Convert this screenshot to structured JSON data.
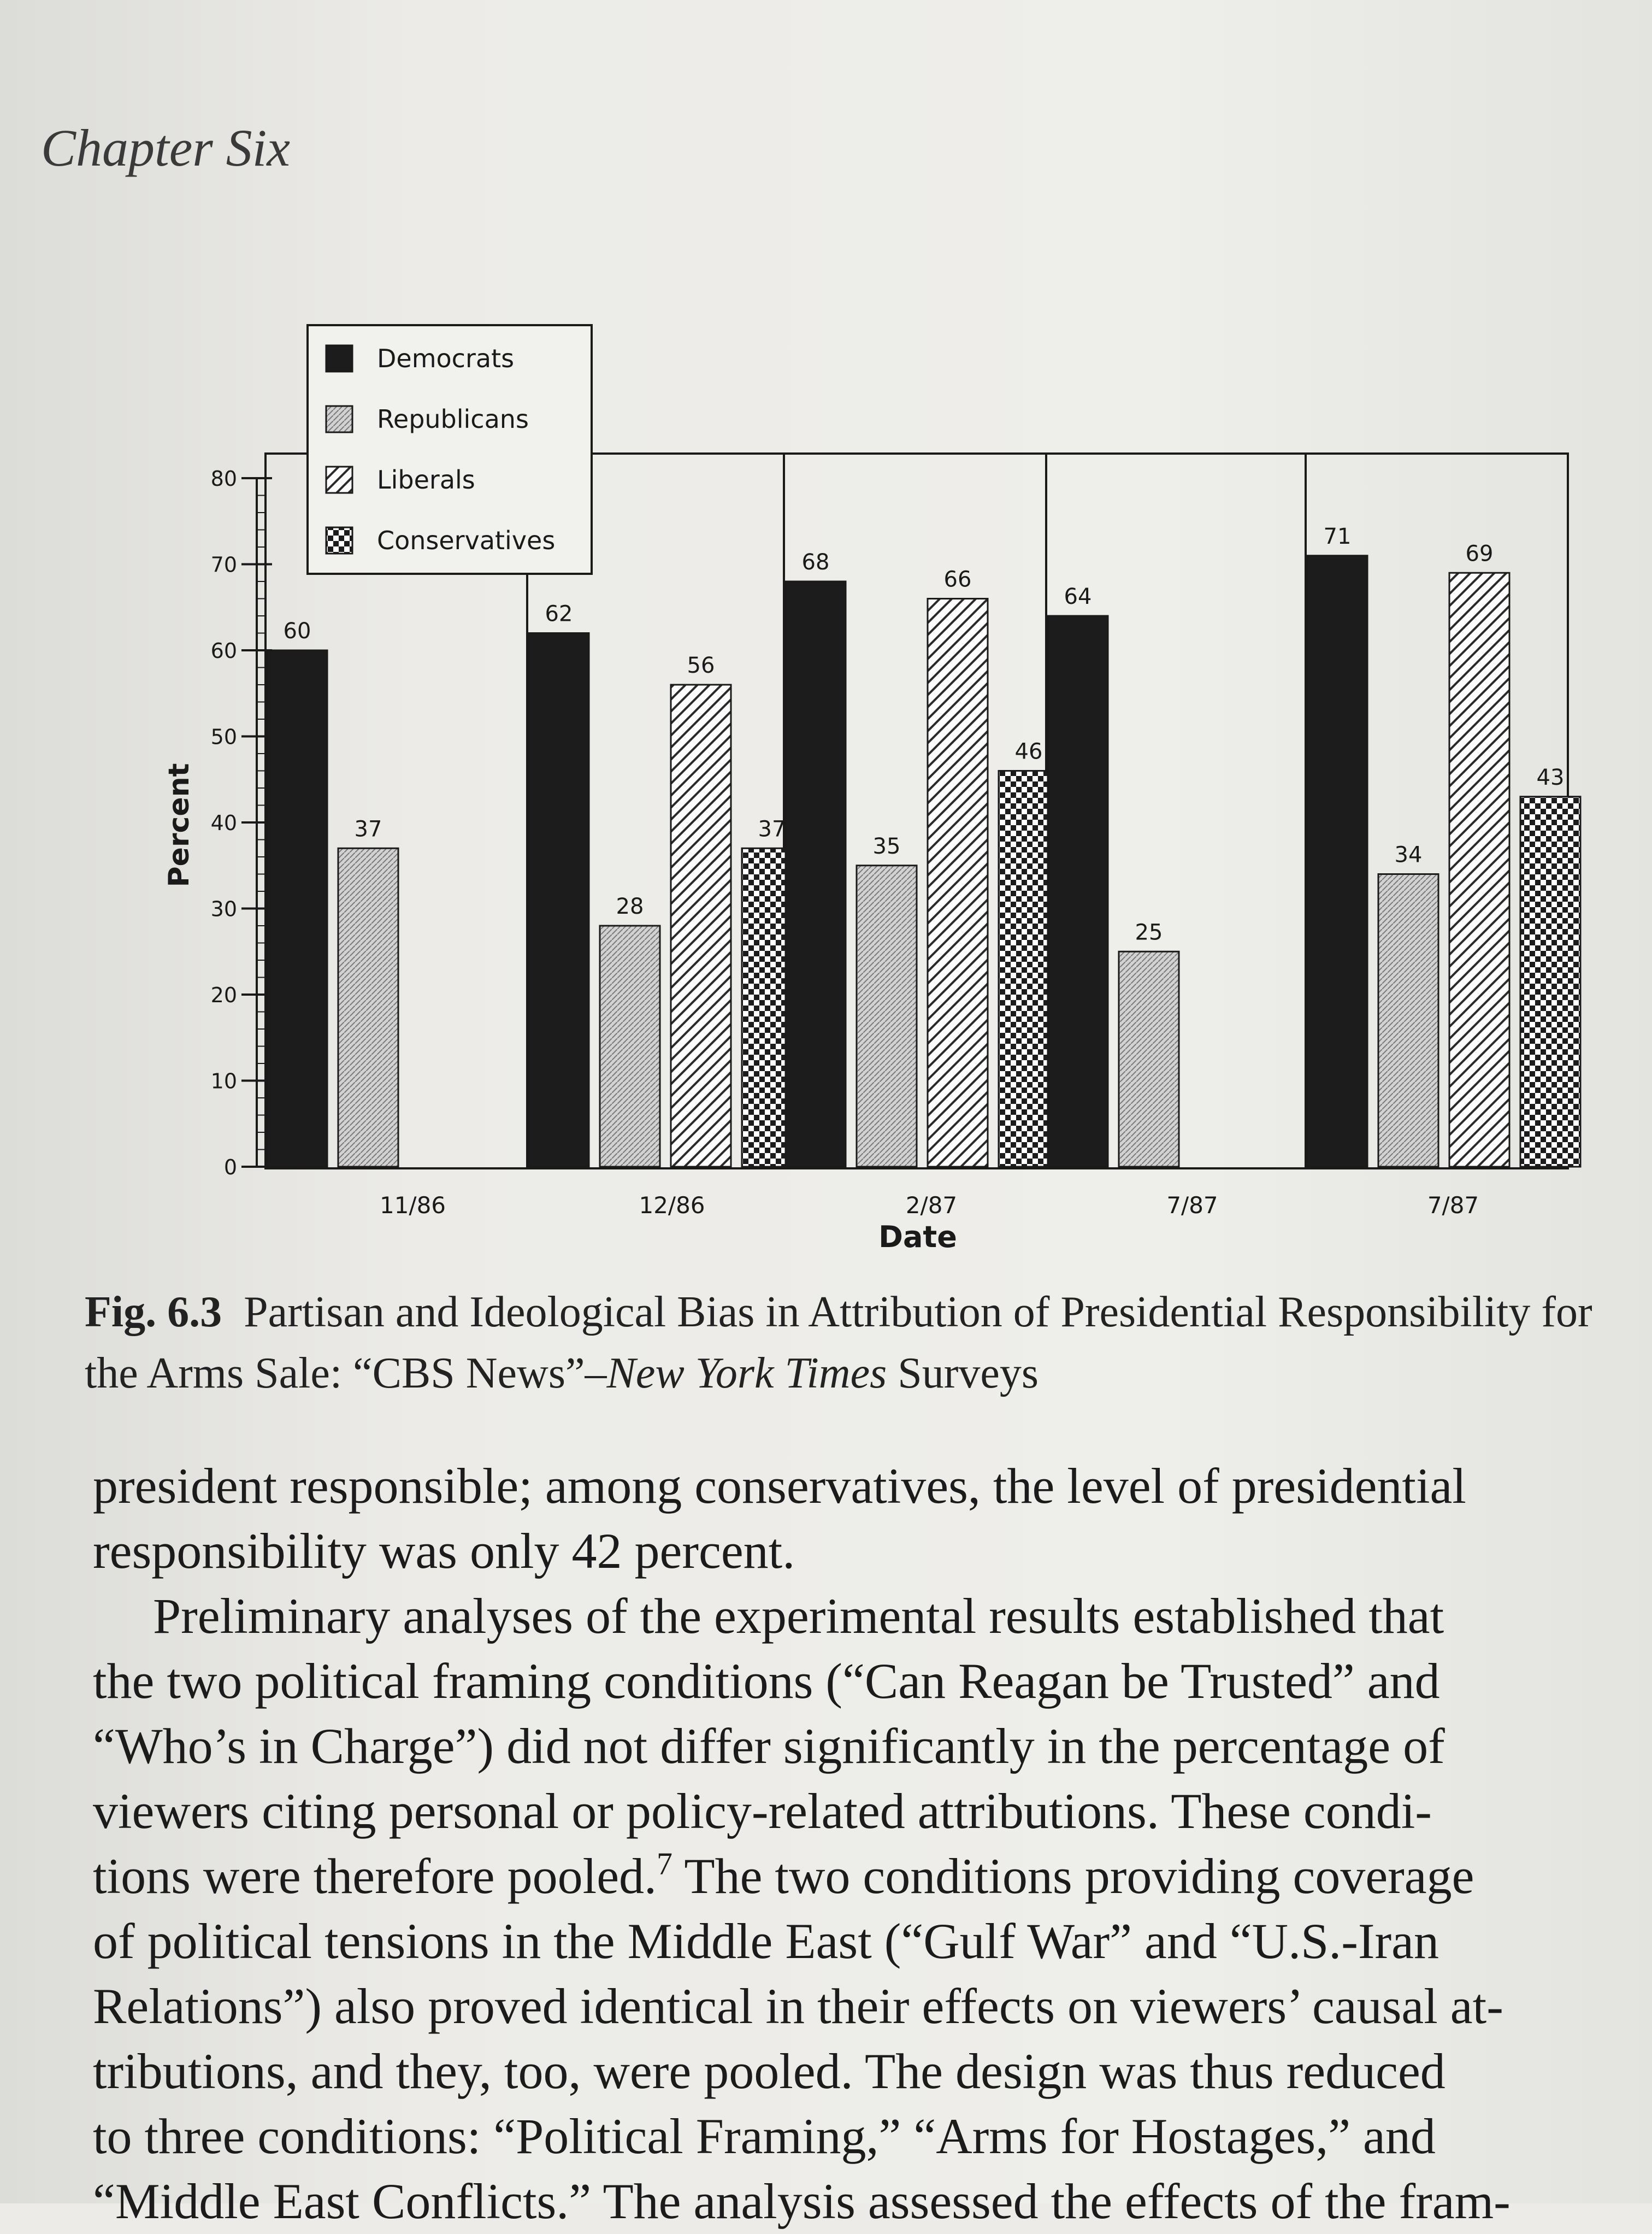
{
  "page": {
    "header": "Chapter Six"
  },
  "chart_data": {
    "type": "bar",
    "categories": [
      "11/86",
      "12/86",
      "2/87",
      "7/87",
      "7/87"
    ],
    "series": [
      {
        "name": "Democrats",
        "values": [
          60,
          62,
          68,
          64,
          71
        ]
      },
      {
        "name": "Republicans",
        "values": [
          37,
          28,
          35,
          25,
          34
        ]
      },
      {
        "name": "Liberals",
        "values": [
          null,
          56,
          66,
          null,
          69
        ]
      },
      {
        "name": "Conservatives",
        "values": [
          null,
          37,
          46,
          null,
          43
        ]
      }
    ],
    "xlabel": "Date",
    "ylabel": "Percent",
    "ylim": [
      0,
      80
    ],
    "yticks": [
      "0",
      "10",
      "20",
      "30",
      "40",
      "50",
      "60",
      "70",
      "80"
    ],
    "legend_position": "top-left",
    "grid": false,
    "colors": {
      "Democrats": "#1c1c1c",
      "Republicans": "#c9c9c9",
      "Liberals": "#ffffff",
      "Conservatives": "#1c1c1c"
    }
  },
  "caption": {
    "label": "Fig. 6.3",
    "text_before": "Partisan and Ideological Bias in Attribution of Presidential Responsibility for the Arms Sale: “CBS News”–",
    "italic": "New York Times",
    "text_after": " Surveys"
  },
  "body": {
    "lines": [
      "president responsible; among conservatives, the level of presidential",
      "responsibility was only 42 percent.",
      "Preliminary analyses of the experimental results established that",
      "the two political framing conditions (“Can Reagan be Trusted” and",
      "“Who’s in Charge”) did not differ significantly in the percentage of",
      "viewers citing personal or policy-related attributions. These condi-",
      "tions were therefore pooled.",
      "7",
      " The two conditions providing coverage",
      "of political tensions in the Middle East (“Gulf War” and “U.S.-Iran",
      "Relations”) also proved identical in their effects on viewers’ causal at-",
      "tributions, and they, too, were pooled. The design was thus reduced",
      "to three conditions: “Political Framing,” “Arms for Hostages,” and",
      "“Middle East Conflicts.” The analysis assessed the effects of the fram-"
    ]
  }
}
